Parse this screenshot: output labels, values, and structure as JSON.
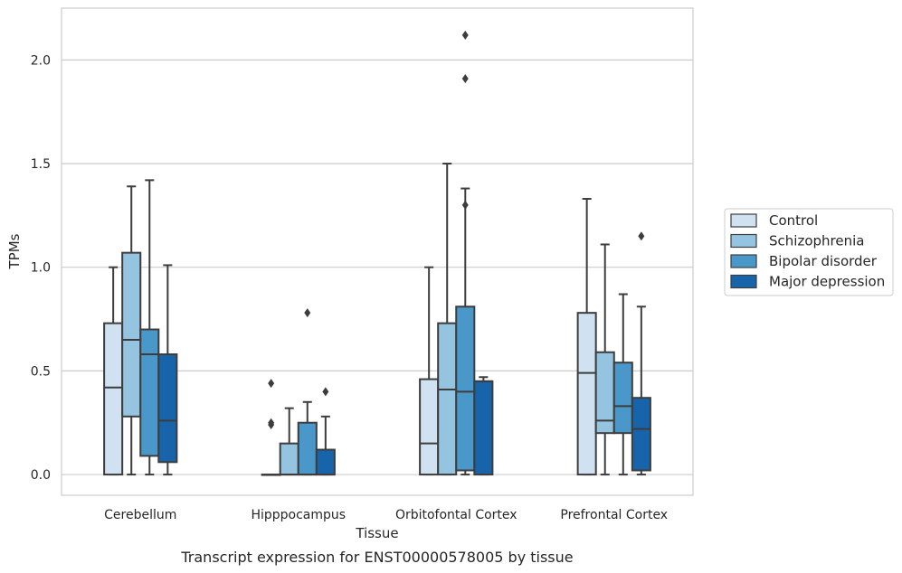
{
  "caption": "Transcript expression for ENST00000578005 by tissue",
  "chart_data": {
    "type": "boxplot",
    "xlabel": "Tissue",
    "ylabel": "TPMs",
    "ylim": [
      -0.1,
      2.25
    ],
    "yticks": [
      0.0,
      0.5,
      1.0,
      1.5,
      2.0
    ],
    "ytick_labels": [
      "0.0",
      "0.5",
      "1.0",
      "1.5",
      "2.0"
    ],
    "grid": "horizontal",
    "legend_placement": "right",
    "categories": [
      "Cerebellum",
      "Hipppocampus",
      "Orbitofontal Cortex",
      "Prefrontal Cortex"
    ],
    "series": [
      {
        "name": "Control",
        "color": "#d0e1f2",
        "boxes": [
          {
            "whislo": 0.0,
            "q1": 0.0,
            "med": 0.42,
            "q3": 0.73,
            "whishi": 1.0,
            "fliers": []
          },
          {
            "whislo": 0.0,
            "q1": 0.0,
            "med": 0.0,
            "q3": 0.0,
            "whishi": 0.0,
            "fliers": [
              0.44,
              0.25,
              0.24
            ]
          },
          {
            "whislo": 0.0,
            "q1": 0.0,
            "med": 0.15,
            "q3": 0.46,
            "whishi": 1.0,
            "fliers": []
          },
          {
            "whislo": 0.0,
            "q1": 0.0,
            "med": 0.49,
            "q3": 0.78,
            "whishi": 1.33,
            "fliers": []
          }
        ]
      },
      {
        "name": "Schizophrenia",
        "color": "#94c4df",
        "boxes": [
          {
            "whislo": 0.0,
            "q1": 0.28,
            "med": 0.65,
            "q3": 1.07,
            "whishi": 1.39,
            "fliers": []
          },
          {
            "whislo": 0.0,
            "q1": 0.0,
            "med": 0.0,
            "q3": 0.15,
            "whishi": 0.32,
            "fliers": []
          },
          {
            "whislo": 0.0,
            "q1": 0.0,
            "med": 0.41,
            "q3": 0.73,
            "whishi": 1.5,
            "fliers": []
          },
          {
            "whislo": 0.0,
            "q1": 0.2,
            "med": 0.26,
            "q3": 0.59,
            "whishi": 1.11,
            "fliers": []
          }
        ]
      },
      {
        "name": "Bipolar disorder",
        "color": "#4a98c9",
        "boxes": [
          {
            "whislo": 0.0,
            "q1": 0.09,
            "med": 0.58,
            "q3": 0.7,
            "whishi": 1.42,
            "fliers": []
          },
          {
            "whislo": 0.0,
            "q1": 0.0,
            "med": 0.0,
            "q3": 0.25,
            "whishi": 0.35,
            "fliers": [
              0.78
            ]
          },
          {
            "whislo": 0.0,
            "q1": 0.02,
            "med": 0.4,
            "q3": 0.81,
            "whishi": 1.38,
            "fliers": [
              2.12,
              1.91,
              1.3
            ]
          },
          {
            "whislo": 0.0,
            "q1": 0.2,
            "med": 0.33,
            "q3": 0.54,
            "whishi": 0.87,
            "fliers": []
          }
        ]
      },
      {
        "name": "Major depression",
        "color": "#1764ab",
        "boxes": [
          {
            "whislo": 0.0,
            "q1": 0.06,
            "med": 0.26,
            "q3": 0.58,
            "whishi": 1.01,
            "fliers": []
          },
          {
            "whislo": 0.0,
            "q1": 0.0,
            "med": 0.0,
            "q3": 0.12,
            "whishi": 0.28,
            "fliers": [
              0.4
            ]
          },
          {
            "whislo": 0.0,
            "q1": 0.0,
            "med": 0.45,
            "q3": 0.45,
            "whishi": 0.47,
            "fliers": []
          },
          {
            "whislo": 0.0,
            "q1": 0.02,
            "med": 0.22,
            "q3": 0.37,
            "whishi": 0.81,
            "fliers": [
              1.15
            ]
          }
        ]
      }
    ]
  }
}
